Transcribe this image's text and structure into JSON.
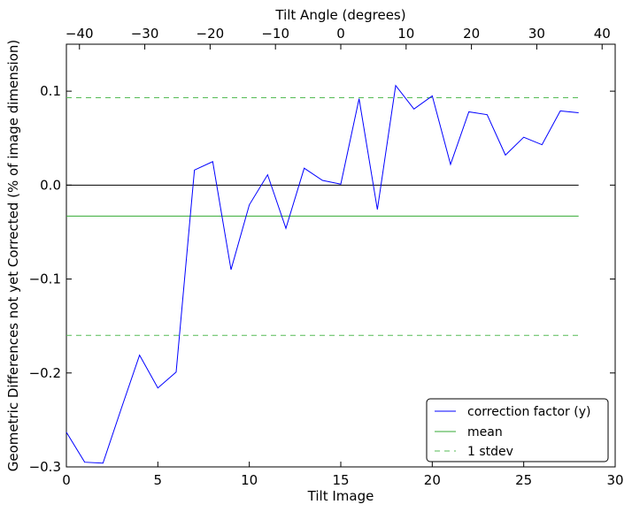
{
  "chart_data": {
    "type": "line",
    "xlabel": "Tilt Image",
    "ylabel": "Geometric Differences not yet Corrected (% of image dimension)",
    "top_xlabel": "Tilt Angle (degrees)",
    "xlim": [
      0,
      30
    ],
    "ylim": [
      -0.3,
      0.15
    ],
    "top_xlim": [
      -42,
      42
    ],
    "x_ticks": [
      0,
      5,
      10,
      15,
      20,
      25,
      30
    ],
    "y_ticks": [
      -0.3,
      -0.2,
      -0.1,
      0.0,
      0.1
    ],
    "y_tick_labels": [
      "−0.3",
      "−0.2",
      "−0.1",
      "0.0",
      "0.1"
    ],
    "top_ticks": [
      -40,
      -30,
      -20,
      -10,
      0,
      10,
      20,
      30,
      40
    ],
    "top_tick_labels": [
      "−40",
      "−30",
      "−20",
      "−10",
      "0",
      "10",
      "20",
      "30",
      "40"
    ],
    "grid": false,
    "legend_position": "lower-right",
    "series": [
      {
        "name": "correction factor (y)",
        "style": "solid",
        "color": "#0000ff",
        "x": [
          0,
          1,
          2,
          3,
          4,
          5,
          6,
          7,
          8,
          9,
          10,
          11,
          12,
          13,
          14,
          15,
          16,
          17,
          18,
          19,
          20,
          21,
          22,
          23,
          24,
          25,
          26,
          27,
          28
        ],
        "values": [
          -0.263,
          -0.295,
          -0.296,
          -0.238,
          -0.181,
          -0.216,
          -0.199,
          0.016,
          0.025,
          -0.09,
          -0.021,
          0.011,
          -0.046,
          0.018,
          0.005,
          0.001,
          0.092,
          -0.026,
          0.106,
          0.081,
          0.095,
          0.022,
          0.078,
          0.075,
          0.032,
          0.051,
          0.043,
          0.079,
          0.077
        ]
      },
      {
        "name": "mean",
        "style": "solid",
        "color": "#33aa33",
        "x": [
          0,
          28
        ],
        "values": [
          -0.033,
          -0.033
        ]
      },
      {
        "name": "1 stdev",
        "style": "dashed",
        "color": "#55bb55",
        "x": [
          0,
          28
        ],
        "values": [
          0.093,
          0.093
        ]
      },
      {
        "name": "",
        "style": "dashed",
        "color": "#55bb55",
        "x": [
          0,
          28
        ],
        "values": [
          -0.16,
          -0.16
        ]
      },
      {
        "name": "",
        "style": "solid",
        "color": "#000000",
        "x": [
          0,
          28
        ],
        "values": [
          0.0,
          0.0
        ]
      }
    ]
  }
}
